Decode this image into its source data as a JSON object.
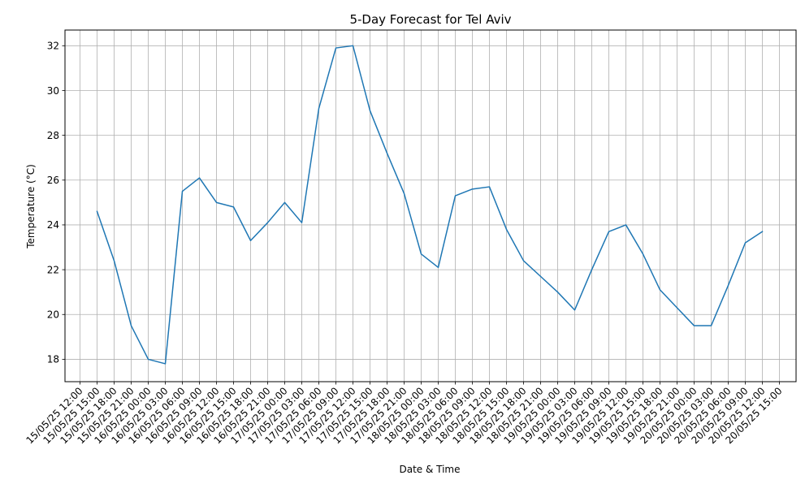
{
  "chart_data": {
    "type": "line",
    "title": "5-Day Forecast for Tel Aviv",
    "xlabel": "Date & Time",
    "ylabel": "Temperature (°C)",
    "ylim": [
      17.0,
      32.7
    ],
    "yticks": [
      18,
      20,
      22,
      24,
      26,
      28,
      30,
      32
    ],
    "grid": true,
    "x_tick_labels": [
      "15/05/25 12:00",
      "15/05/25 15:00",
      "15/05/25 18:00",
      "15/05/25 21:00",
      "16/05/25 00:00",
      "16/05/25 03:00",
      "16/05/25 06:00",
      "16/05/25 09:00",
      "16/05/25 12:00",
      "16/05/25 15:00",
      "16/05/25 18:00",
      "16/05/25 21:00",
      "17/05/25 00:00",
      "17/05/25 03:00",
      "17/05/25 06:00",
      "17/05/25 09:00",
      "17/05/25 12:00",
      "17/05/25 15:00",
      "17/05/25 18:00",
      "17/05/25 21:00",
      "18/05/25 00:00",
      "18/05/25 03:00",
      "18/05/25 06:00",
      "18/05/25 09:00",
      "18/05/25 12:00",
      "18/05/25 15:00",
      "18/05/25 18:00",
      "18/05/25 21:00",
      "19/05/25 00:00",
      "19/05/25 03:00",
      "19/05/25 06:00",
      "19/05/25 09:00",
      "19/05/25 12:00",
      "19/05/25 15:00",
      "19/05/25 18:00",
      "19/05/25 21:00",
      "20/05/25 00:00",
      "20/05/25 03:00",
      "20/05/25 06:00",
      "20/05/25 09:00",
      "20/05/25 12:00",
      "20/05/25 15:00"
    ],
    "series": [
      {
        "color": "#1f77b4",
        "x": [
          "15/05/25 15:00",
          "15/05/25 18:00",
          "15/05/25 21:00",
          "16/05/25 00:00",
          "16/05/25 03:00",
          "16/05/25 06:00",
          "16/05/25 09:00",
          "16/05/25 12:00",
          "16/05/25 15:00",
          "16/05/25 18:00",
          "16/05/25 21:00",
          "17/05/25 00:00",
          "17/05/25 03:00",
          "17/05/25 06:00",
          "17/05/25 09:00",
          "17/05/25 12:00",
          "17/05/25 15:00",
          "17/05/25 18:00",
          "17/05/25 21:00",
          "18/05/25 00:00",
          "18/05/25 03:00",
          "18/05/25 06:00",
          "18/05/25 09:00",
          "18/05/25 12:00",
          "18/05/25 15:00",
          "18/05/25 18:00",
          "18/05/25 21:00",
          "19/05/25 00:00",
          "19/05/25 03:00",
          "19/05/25 06:00",
          "19/05/25 09:00",
          "19/05/25 12:00",
          "19/05/25 15:00",
          "19/05/25 18:00",
          "19/05/25 21:00",
          "20/05/25 00:00",
          "20/05/25 03:00",
          "20/05/25 06:00",
          "20/05/25 09:00",
          "20/05/25 12:00"
        ],
        "values": [
          24.6,
          22.4,
          19.5,
          18.0,
          17.8,
          25.5,
          26.1,
          25.0,
          24.8,
          23.3,
          24.1,
          25.0,
          24.1,
          29.2,
          31.9,
          32.0,
          29.1,
          27.2,
          25.4,
          22.7,
          22.1,
          25.3,
          25.6,
          25.7,
          23.8,
          22.4,
          21.7,
          21.0,
          20.2,
          22.0,
          23.7,
          24.0,
          22.7,
          21.1,
          20.3,
          19.5,
          19.5,
          21.3,
          23.2,
          23.7
        ]
      }
    ]
  }
}
